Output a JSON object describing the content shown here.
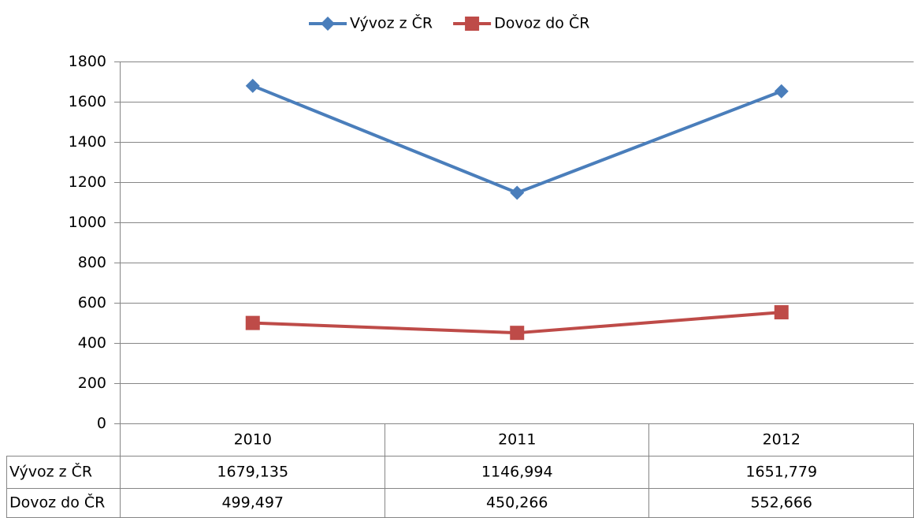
{
  "chart_data": {
    "type": "line",
    "categories": [
      "2010",
      "2011",
      "2012"
    ],
    "series": [
      {
        "name": "Vývoz z ČR",
        "color": "#4a7ebb",
        "marker": "diamond",
        "values": [
          1679.135,
          1146.994,
          1651.779
        ],
        "value_labels": [
          "1679,135",
          "1146,994",
          "1651,779"
        ]
      },
      {
        "name": "Dovoz do ČR",
        "color": "#be4b48",
        "marker": "square",
        "values": [
          499.497,
          450.266,
          552.666
        ],
        "value_labels": [
          "499,497",
          "450,266",
          "552,666"
        ]
      }
    ],
    "ylim": [
      0,
      1800
    ],
    "yticks": [
      0,
      200,
      400,
      600,
      800,
      1000,
      1200,
      1400,
      1600,
      1800
    ],
    "grid": true,
    "legend": "top",
    "data_table": true
  }
}
